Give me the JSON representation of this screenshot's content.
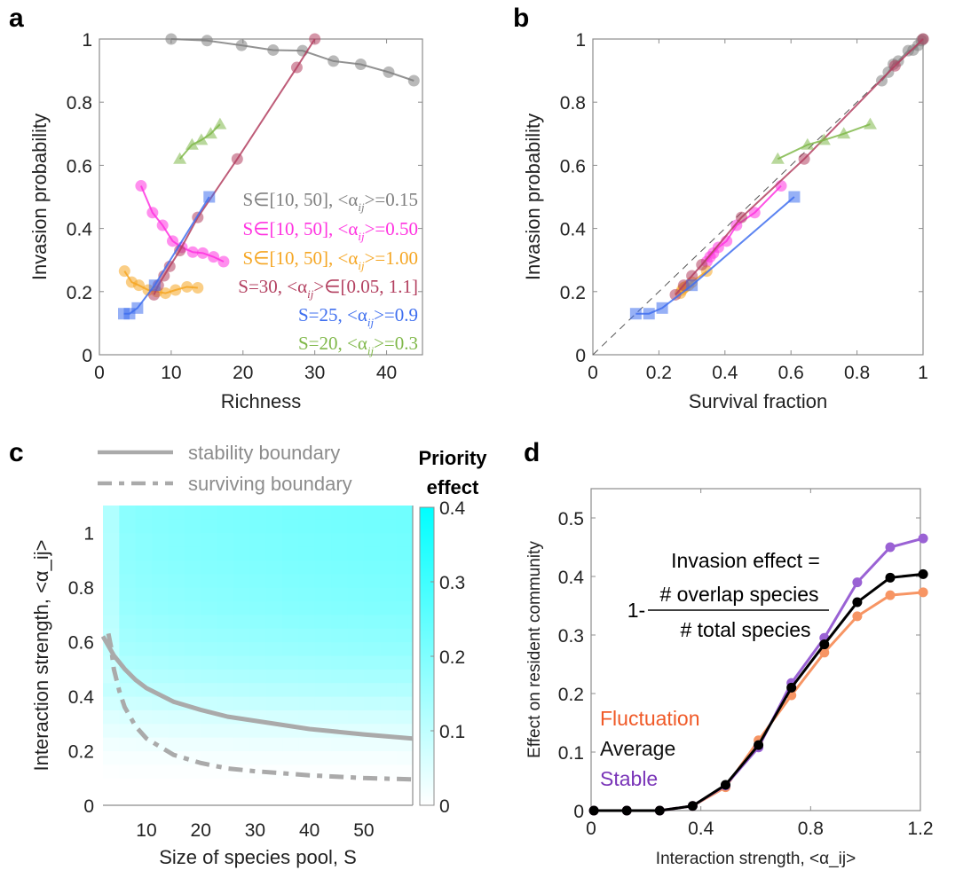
{
  "chart_data": [
    {
      "panel": "a",
      "type": "line",
      "xlabel": "Richness",
      "ylabel": "Invasion probability",
      "xlim": [
        0,
        45
      ],
      "ylim": [
        0,
        1
      ],
      "xticks": [
        "0",
        "10",
        "20",
        "30",
        "40"
      ],
      "yticks": [
        "0",
        "0.2",
        "0.4",
        "0.6",
        "0.8",
        "1"
      ],
      "xtick_values": [
        0,
        10,
        20,
        30,
        40
      ],
      "ytick_values": [
        0,
        0.2,
        0.4,
        0.6,
        0.8,
        1
      ],
      "legend_position": "bottom-right",
      "series": [
        {
          "name": "S∈[10, 50], <α_ij>=0.15",
          "label_main": "S∈[10, 50], <α",
          "label_tail": ">=0.15",
          "color": "#7f7f7f",
          "marker": "circle",
          "x": [
            10,
            15,
            19.8,
            24.2,
            28.3,
            32.6,
            36.4,
            40.3,
            43.8
          ],
          "y": [
            1.0,
            0.995,
            0.98,
            0.965,
            0.963,
            0.93,
            0.92,
            0.895,
            0.868
          ]
        },
        {
          "name": "S∈[10, 50], <α_ij>=0.50",
          "label_main": "S∈[10, 50], <α",
          "label_tail": ">=0.50",
          "color": "#ff33e0",
          "marker": "circle",
          "x": [
            5.8,
            7.4,
            8.8,
            10.2,
            11.5,
            13.0,
            14.4,
            15.9,
            17.3
          ],
          "y": [
            0.535,
            0.45,
            0.41,
            0.36,
            0.34,
            0.325,
            0.322,
            0.31,
            0.295
          ]
        },
        {
          "name": "S∈[10, 50], <α_ij>=1.00",
          "label_main": "S∈[10, 50], <α",
          "label_tail": ">=1.00",
          "color": "#f5a623",
          "marker": "circle",
          "x": [
            3.5,
            4.5,
            5.5,
            6.8,
            8.0,
            9.2,
            10.6,
            12.2,
            13.7
          ],
          "y": [
            0.265,
            0.23,
            0.22,
            0.205,
            0.2,
            0.195,
            0.205,
            0.215,
            0.212
          ]
        },
        {
          "name": "S=30, <α_ij>∈[0.05, 1.1]",
          "label_main": "S=30, <α",
          "label_tail": ">∈[0.05, 1.1]",
          "color": "#b34060",
          "marker": "circle",
          "x": [
            7.6,
            8.2,
            9.0,
            9.8,
            11.2,
            13.7,
            19.2,
            27.5,
            30.0
          ],
          "y": [
            0.19,
            0.22,
            0.25,
            0.28,
            0.33,
            0.435,
            0.62,
            0.91,
            1.0
          ]
        },
        {
          "name": "S=25, <α_ij>=0.9",
          "label_main": "S=25, <α",
          "label_tail": ">=0.9",
          "color": "#3f6fef",
          "marker": "square",
          "x": [
            3.4,
            4.2,
            5.3,
            7.7,
            15.3
          ],
          "y": [
            0.13,
            0.13,
            0.148,
            0.22,
            0.5
          ]
        },
        {
          "name": "S=20, <α_ij>=0.3",
          "label_main": "S=20, <α",
          "label_tail": ">=0.3",
          "color": "#80b84a",
          "marker": "triangle",
          "x": [
            11.2,
            12.9,
            14.2,
            15.5,
            16.8
          ],
          "y": [
            0.62,
            0.665,
            0.68,
            0.7,
            0.73
          ]
        }
      ]
    },
    {
      "panel": "b",
      "type": "line",
      "xlabel": "Survival fraction",
      "ylabel": "Invasion probability",
      "xlim": [
        0,
        1
      ],
      "ylim": [
        0,
        1
      ],
      "xticks": [
        "0",
        "0.2",
        "0.4",
        "0.6",
        "0.8",
        "1"
      ],
      "yticks": [
        "0",
        "0.2",
        "0.4",
        "0.6",
        "0.8",
        "1"
      ],
      "xtick_values": [
        0,
        0.2,
        0.4,
        0.6,
        0.8,
        1
      ],
      "ytick_values": [
        0,
        0.2,
        0.4,
        0.6,
        0.8,
        1
      ],
      "reference_line": {
        "type": "y=x",
        "style": "dashed",
        "color": "#555555"
      },
      "series": [
        {
          "name": "S∈[10, 50], <α_ij>=0.15",
          "color": "#7f7f7f",
          "marker": "circle",
          "x": [
            0.875,
            0.895,
            0.91,
            0.925,
            0.955,
            0.97,
            0.985,
            0.995,
            1.0
          ],
          "y": [
            0.868,
            0.895,
            0.92,
            0.93,
            0.963,
            0.965,
            0.98,
            0.995,
            1.0
          ]
        },
        {
          "name": "S∈[10, 50], <α_ij>=0.50",
          "color": "#ff33e0",
          "marker": "circle",
          "x": [
            0.345,
            0.355,
            0.365,
            0.38,
            0.405,
            0.435,
            0.49,
            0.57
          ],
          "y": [
            0.295,
            0.31,
            0.322,
            0.34,
            0.36,
            0.41,
            0.45,
            0.535
          ]
        },
        {
          "name": "S∈[10, 50], <α_ij>=1.00",
          "color": "#f5a623",
          "marker": "circle",
          "x": [
            0.265,
            0.27,
            0.275,
            0.28,
            0.29,
            0.3,
            0.345
          ],
          "y": [
            0.195,
            0.205,
            0.212,
            0.215,
            0.22,
            0.23,
            0.265
          ]
        },
        {
          "name": "S=30, <α_ij>∈[0.05, 1.1]",
          "color": "#b34060",
          "marker": "circle",
          "x": [
            0.25,
            0.275,
            0.3,
            0.33,
            0.45,
            0.64,
            0.915,
            1.0
          ],
          "y": [
            0.19,
            0.22,
            0.25,
            0.285,
            0.435,
            0.62,
            0.915,
            1.0
          ]
        },
        {
          "name": "S=25, <α_ij>=0.9",
          "color": "#3f6fef",
          "marker": "square",
          "x": [
            0.13,
            0.17,
            0.21,
            0.3,
            0.61
          ],
          "y": [
            0.13,
            0.13,
            0.148,
            0.22,
            0.5
          ]
        },
        {
          "name": "S=20, <α_ij>=0.3",
          "color": "#80b84a",
          "marker": "triangle",
          "x": [
            0.56,
            0.65,
            0.7,
            0.76,
            0.84
          ],
          "y": [
            0.62,
            0.665,
            0.68,
            0.7,
            0.73
          ]
        }
      ]
    },
    {
      "panel": "c",
      "type": "heatmap",
      "xlabel": "Size of species pool, S",
      "ylabel": "Interaction strength, <α_ij>",
      "xlim": [
        2,
        59
      ],
      "ylim": [
        0,
        1.1
      ],
      "xticks": [
        "10",
        "20",
        "30",
        "40",
        "50"
      ],
      "yticks": [
        "0",
        "0.2",
        "0.4",
        "0.6",
        "0.8",
        "1"
      ],
      "xtick_values": [
        10,
        20,
        30,
        40,
        50
      ],
      "ytick_values": [
        0,
        0.2,
        0.4,
        0.6,
        0.8,
        1
      ],
      "colorbar": {
        "title_line1": "Priority",
        "title_line2": "effect",
        "range": [
          0,
          0.4
        ],
        "ticks": [
          "0",
          "0.1",
          "0.2",
          "0.3",
          "0.4"
        ],
        "tick_values": [
          0,
          0.1,
          0.2,
          0.3,
          0.4
        ],
        "color_low": "#ffffff",
        "color_high": "#00ffff"
      },
      "heatmap_rows": {
        "alpha": [
          0.05,
          0.1,
          0.15,
          0.2,
          0.25,
          0.3,
          0.35,
          0.4,
          0.45,
          0.5,
          0.55,
          0.6,
          0.65,
          0.7,
          0.75,
          0.8,
          0.85,
          0.9,
          0.95,
          1.0,
          1.05,
          1.1
        ],
        "value_at_S60": [
          0.0,
          0.0,
          0.005,
          0.015,
          0.03,
          0.05,
          0.07,
          0.095,
          0.12,
          0.14,
          0.155,
          0.17,
          0.18,
          0.19,
          0.2,
          0.205,
          0.21,
          0.215,
          0.22,
          0.22,
          0.225,
          0.225
        ]
      },
      "legend": [
        {
          "label": "stability boundary",
          "style": "solid",
          "color": "#aaaaaa"
        },
        {
          "label": "surviving boundary",
          "style": "dashdot",
          "color": "#aaaaaa"
        }
      ],
      "curves": [
        {
          "name": "stability boundary",
          "S": [
            2,
            3,
            4,
            6,
            8,
            10,
            15,
            20,
            25,
            30,
            40,
            50,
            59
          ],
          "alpha": [
            0.62,
            0.585,
            0.55,
            0.5,
            0.46,
            0.43,
            0.38,
            0.35,
            0.325,
            0.31,
            0.28,
            0.26,
            0.245
          ]
        },
        {
          "name": "surviving boundary",
          "S": [
            3,
            3.5,
            4,
            5,
            6,
            8,
            10,
            15,
            20,
            25,
            30,
            40,
            50,
            59
          ],
          "alpha": [
            0.63,
            0.58,
            0.5,
            0.42,
            0.36,
            0.29,
            0.245,
            0.185,
            0.155,
            0.135,
            0.125,
            0.11,
            0.1,
            0.095
          ]
        }
      ]
    },
    {
      "panel": "d",
      "type": "line",
      "xlabel": "Interaction strength, <α_ij>",
      "ylabel": "Effect on resident community",
      "xlim": [
        0,
        1.2
      ],
      "ylim": [
        0,
        0.55
      ],
      "xticks": [
        "0",
        "0.4",
        "0.8",
        "1.2"
      ],
      "yticks": [
        "0",
        "0.1",
        "0.2",
        "0.3",
        "0.4",
        "0.5"
      ],
      "xtick_values": [
        0,
        0.4,
        0.8,
        1.2
      ],
      "ytick_values": [
        0,
        0.1,
        0.2,
        0.3,
        0.4,
        0.5
      ],
      "annotation": {
        "line1": "Invasion effect =",
        "prefix": "1-",
        "numerator": "# overlap species",
        "denominator": "# total species"
      },
      "x": [
        0.01,
        0.13,
        0.25,
        0.37,
        0.49,
        0.61,
        0.73,
        0.85,
        0.97,
        1.09,
        1.21
      ],
      "series": [
        {
          "name": "Fluctuation",
          "color": "#f79564",
          "label_color": "#f05a28",
          "y": [
            0.0,
            0.0,
            0.0,
            0.008,
            0.04,
            0.12,
            0.197,
            0.27,
            0.332,
            0.368,
            0.373
          ]
        },
        {
          "name": "Stable",
          "color": "#9a62d4",
          "label_color": "#7a35b8",
          "y": [
            0.0,
            0.0,
            0.0,
            0.008,
            0.043,
            0.108,
            0.218,
            0.295,
            0.39,
            0.45,
            0.465
          ]
        },
        {
          "name": "Average",
          "color": "#000000",
          "label_color": "#111111",
          "y": [
            0.0,
            0.0,
            0.0,
            0.008,
            0.044,
            0.112,
            0.21,
            0.284,
            0.356,
            0.398,
            0.404
          ]
        }
      ],
      "legend_order": [
        "Fluctuation",
        "Average",
        "Stable"
      ]
    }
  ]
}
